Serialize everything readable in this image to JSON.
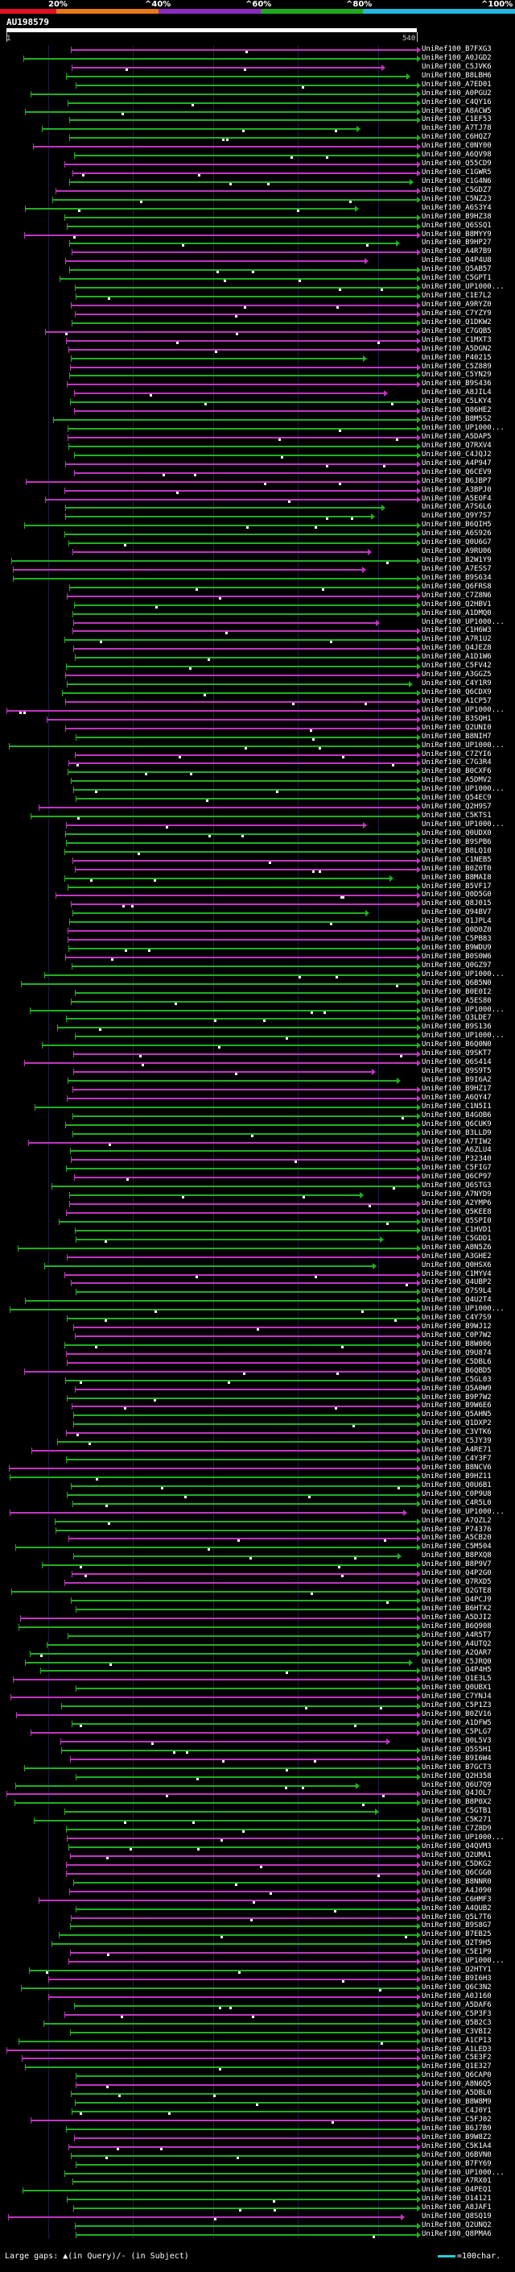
{
  "scale": {
    "labels": [
      "20%",
      "^40%",
      "^60%",
      "^80%",
      "^100%"
    ],
    "colors": [
      "#e0101e",
      "#e8781a",
      "#8a2bbf",
      "#21a821",
      "#22b8e0"
    ]
  },
  "query_title": "AU198579",
  "ruler": {
    "start": "1",
    "end": "540"
  },
  "hits": [
    "UniRef100_B7FXG3",
    "UniRef100_A0JGD2",
    "UniRef100_C5JVK6",
    "UniRef100_B8LBH6",
    "UniRef100_A7ED01",
    "UniRef100_A0PGU2",
    "UniRef100_C4QY16",
    "UniRef100_A8ACW5",
    "UniRef100_C1EF53",
    "UniRef100_A7TJ78",
    "UniRef100_C6HQZ7",
    "UniRef100_C0NY00",
    "UniRef100_A6QV98",
    "UniRef100_Q55CD9",
    "UniRef100_C1GWR5",
    "UniRef100_C1G4N6",
    "UniRef100_C5GDZ7",
    "UniRef100_C5NZ23",
    "UniRef100_A6S3Y4",
    "UniRef100_B9HZ38",
    "UniRef100_Q6SSQ1",
    "UniRef100_B8MYY9",
    "UniRef100_B9HP27",
    "UniRef100_A4R7B9",
    "UniRef100_Q4P4U8",
    "UniRef100_Q5AB57",
    "UniRef100_C5GPT1",
    "UniRef100_UP1000...",
    "UniRef100_C1E7L2",
    "UniRef100_A9RYZ0",
    "UniRef100_C7YZY9",
    "UniRef100_Q1DKW2",
    "UniRef100_C7GQB5",
    "UniRef100_C1MXT3",
    "UniRef100_A5DGN2",
    "UniRef100_P40215",
    "UniRef100_C5Z889",
    "UniRef100_C5YN29",
    "UniRef100_B9S436",
    "UniRef100_A8JIL4",
    "UniRef100_C5LKY4",
    "UniRef100_Q86HE2",
    "UniRef100_B8M5S2",
    "UniRef100_UP1000...",
    "UniRef100_A5DAP5",
    "UniRef100_Q7RXV4",
    "UniRef100_C4JQJ2",
    "UniRef100_A4P947",
    "UniRef100_Q6CEV9",
    "UniRef100_B6JBP7",
    "UniRef100_A3BPJ0",
    "UniRef100_A5EOF4",
    "UniRef100_A7S6L6",
    "UniRef100_Q9Y7S7",
    "UniRef100_B6QIH5",
    "UniRef100_A6S926",
    "UniRef100_Q0U6G7",
    "UniRef100_A9RU06",
    "UniRef100_B2W1Y9",
    "UniRef100_A7ESS7",
    "UniRef100_B9S634",
    "UniRef100_Q6FRS8",
    "UniRef100_C7Z8N6",
    "UniRef100_Q2HBV1",
    "UniRef100_A1DMQ0",
    "UniRef100_UP1000...",
    "UniRef100_C1H6W3",
    "UniRef100_A7R1U2",
    "UniRef100_Q4JEZ8",
    "UniRef100_A1D1W6",
    "UniRef100_C5FV42",
    "UniRef100_A3GGZ5",
    "UniRef100_C4Y1R9",
    "UniRef100_Q6CDX9",
    "UniRef100_A1CP57",
    "UniRef100_UP1000...",
    "UniRef100_B3SQH1",
    "UniRef100_Q2UNI0",
    "UniRef100_B8NIH7",
    "UniRef100_UP1000...",
    "UniRef100_C7ZYI6",
    "UniRef100_C7G3R4",
    "UniRef100_B0CXF6",
    "UniRef100_A5DMV2",
    "UniRef100_UP1000...",
    "UniRef100_Q54EC9",
    "UniRef100_Q2H9S7",
    "UniRef100_C5KTS1",
    "UniRef100_UP1000...",
    "UniRef100_Q0UDX0",
    "UniRef100_B9SPB6",
    "UniRef100_B8LQ10",
    "UniRef100_C1NEB5",
    "UniRef100_B0Z0T0",
    "UniRef100_B8MAI8",
    "UniRef100_B5VF17",
    "UniRef100_Q0D5G0",
    "UniRef100_Q8J015",
    "UniRef100_Q94BV7",
    "UniRef100_Q1JPL4",
    "UniRef100_Q0D0Z0",
    "UniRef100_C5PB83",
    "UniRef100_B9WDU9",
    "UniRef100_B0S0W6",
    "UniRef100_Q0GZ97",
    "UniRef100_UP1000...",
    "UniRef100_Q6B5N0",
    "UniRef100_B0E0I2",
    "UniRef100_A5ES80",
    "UniRef100_UP1000...",
    "UniRef100_Q3LDE7",
    "UniRef100_B9S136",
    "UniRef100_UP1000...",
    "UniRef100_B6Q0N0",
    "UniRef100_Q9SKT7",
    "UniRef100_Q6S414",
    "UniRef100_Q9S9T5",
    "UniRef100_B9I6A2",
    "UniRef100_B9HZ17",
    "UniRef100_A6QY47",
    "UniRef100_C1N5I1",
    "UniRef100_B4GOB6",
    "UniRef100_Q6CUK9",
    "UniRef100_B3LLD9",
    "UniRef100_A7TIW2",
    "UniRef100_A6ZLU4",
    "UniRef100_P32340",
    "UniRef100_C5FIG7",
    "UniRef100_Q6CP97",
    "UniRef100_Q6STG3",
    "UniRef100_A7NYD9",
    "UniRef100_A2YMP6",
    "UniRef100_Q5KEE8",
    "UniRef100_Q5SPI0",
    "UniRef100_C1HVD1",
    "UniRef100_C5GDD1",
    "UniRef100_A8N5Z6",
    "UniRef100_A3GHE2",
    "UniRef100_Q0HSX6",
    "UniRef100_C1MYV4",
    "UniRef100_Q4UBP2",
    "UniRef100_Q7S9L4",
    "UniRef100_Q4U2T4",
    "UniRef100_UP1000...",
    "UniRef100_C4Y7S9",
    "UniRef100_B9WJ12",
    "UniRef100_C0P7W2",
    "UniRef100_B8W006",
    "UniRef100_Q9U874",
    "UniRef100_C5DBL6",
    "UniRef100_B6QBD5",
    "UniRef100_C5GL03",
    "UniRef100_Q5A0W9",
    "UniRef100_B9P7W2",
    "UniRef100_B9W6E6",
    "UniRef100_Q5AHN5",
    "UniRef100_Q1DXP2",
    "UniRef100_C3VTK6",
    "UniRef100_C5JY39",
    "UniRef100_A4RE71",
    "UniRef100_C4Y3F7",
    "UniRef100_B8NCV6",
    "UniRef100_B9HZ11",
    "UniRef100_Q0U6B1",
    "UniRef100_C0P9U8",
    "UniRef100_C4R5L0",
    "UniRef100_UP1000...",
    "UniRef100_A7QZL2",
    "UniRef100_P74376",
    "UniRef100_A5CB20",
    "UniRef100_C5M504",
    "UniRef100_B8PXQ8",
    "UniRef100_B8P9V7",
    "UniRef100_Q4P2G0",
    "UniRef100_Q7RXD5",
    "UniRef100_Q2GTE8",
    "UniRef100_Q4PCJ9",
    "UniRef100_B6HTX2",
    "UniRef100_A5DJI2",
    "UniRef100_B6Q908",
    "UniRef100_A4R5T7",
    "UniRef100_A4UTQ2",
    "UniRef100_A2QAR7",
    "UniRef100_C5JRQ0",
    "UniRef100_Q4P4H5",
    "UniRef100_Q1E3L5",
    "UniRef100_Q0UBX1",
    "UniRef100_C7YNJ4",
    "UniRef100_C5P1Z3",
    "UniRef100_B0ZV16",
    "UniRef100_A1DFW5",
    "UniRef100_C5PLG7",
    "UniRef100_Q0L5V3",
    "UniRef100_Q5S5H1",
    "UniRef100_B9I6W4",
    "UniRef100_B7GCT3",
    "UniRef100_Q2H358",
    "UniRef100_Q6U7Q9",
    "UniRef100_Q4JOL7",
    "UniRef100_B8P0X2",
    "UniRef100_C5GTB1",
    "UniRef100_C5K271",
    "UniRef100_C7Z8D9",
    "UniRef100_UP1000...",
    "UniRef100_Q4QVM3",
    "UniRef100_Q2UMA1",
    "UniRef100_C5DKG2",
    "UniRef100_Q6CGG0",
    "UniRef100_B8NNR0",
    "UniRef100_A4J090",
    "UniRef100_C6HMF3",
    "UniRef100_A4QUB2",
    "UniRef100_Q5L7T6",
    "UniRef100_B9S8G7",
    "UniRef100_B7EB25",
    "UniRef100_Q2T9H5",
    "UniRef100_C5E1P9",
    "UniRef100_UP1000...",
    "UniRef100_Q2HTY1",
    "UniRef100_B9I6H3",
    "UniRef100_Q6C3N2",
    "UniRef100_A0J160",
    "UniRef100_A5DAF6",
    "UniRef100_C5P3F3",
    "UniRef100_Q5B2C3",
    "UniRef100_C3VBI2",
    "UniRef100_A1CP13",
    "UniRef100_A1LED3",
    "UniRef100_C5E3F2",
    "UniRef100_Q1E327",
    "UniRef100_Q6CAP0",
    "UniRef100_A8N6Q5",
    "UniRef100_A5DBL0",
    "UniRef100_B8W8M9",
    "UniRef100_C4J0Y1",
    "UniRef100_C5FJ02",
    "UniRef100_B6J7B9",
    "UniRef100_B9W8Z2",
    "UniRef100_C5K1A4",
    "UniRef100_Q6BVN0",
    "UniRef100_B7FY69",
    "UniRef100_UP1000...",
    "UniRef100_A7RX01",
    "UniRef100_Q4PEQ1",
    "UniRef100_O14121",
    "UniRef100_A8JAF1",
    "UniRef100_Q8SQ19",
    "UniRef100_Q2UNQ2",
    "UniRef100_Q8PMA6"
  ],
  "legend": {
    "large_gaps": "Large gaps: ▲(in Query)/- (in Subject)",
    "scale_label": "=100char."
  }
}
